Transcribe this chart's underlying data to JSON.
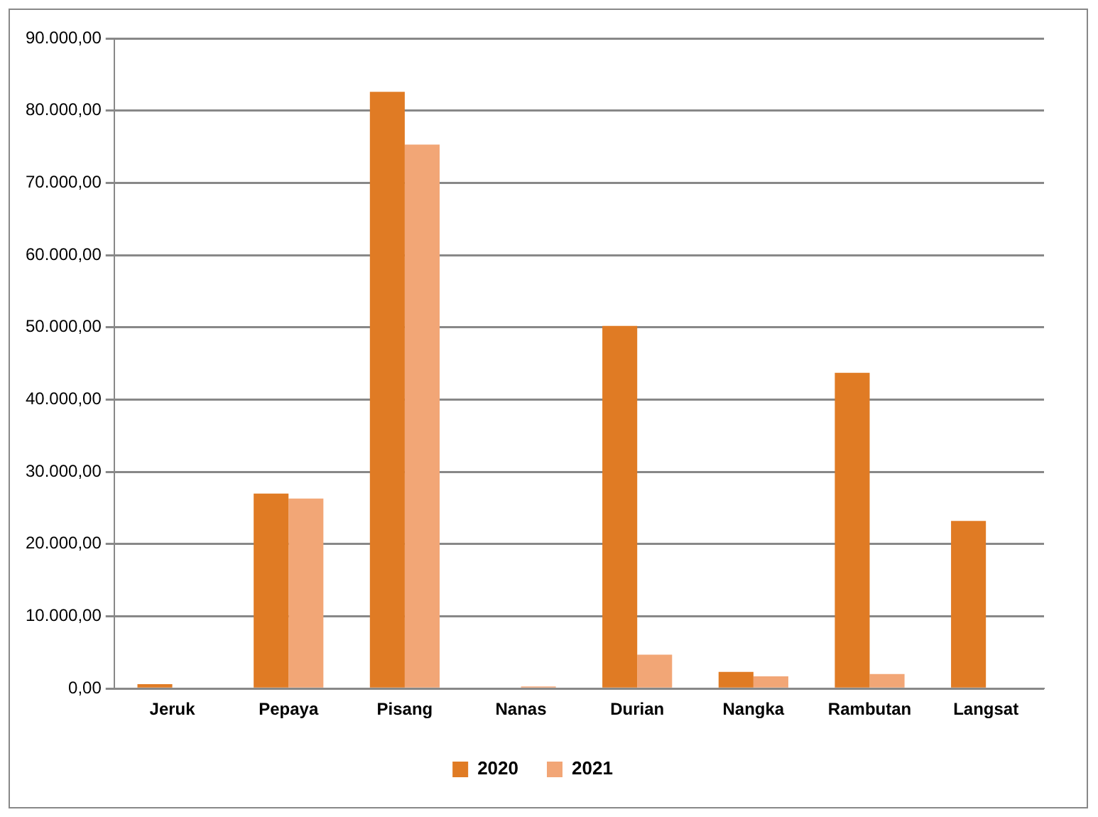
{
  "chart_data": {
    "type": "bar",
    "categories": [
      "Jeruk",
      "Pepaya",
      "Pisang",
      "Nanas",
      "Durian",
      "Nangka",
      "Rambutan",
      "Langsat"
    ],
    "series": [
      {
        "name": "2020",
        "color": "#e07b24",
        "values": [
          600,
          27000,
          82600,
          0,
          50200,
          2300,
          43700,
          23200
        ]
      },
      {
        "name": "2021",
        "color": "#f2a676",
        "values": [
          0,
          26300,
          75300,
          300,
          4700,
          1700,
          2000,
          0
        ]
      }
    ],
    "ylim": [
      0,
      90000
    ],
    "yticks": [
      {
        "value": 0,
        "label": "0,00"
      },
      {
        "value": 10000,
        "label": "10.000,00"
      },
      {
        "value": 20000,
        "label": "20.000,00"
      },
      {
        "value": 30000,
        "label": "30.000,00"
      },
      {
        "value": 40000,
        "label": "40.000,00"
      },
      {
        "value": 50000,
        "label": "50.000,00"
      },
      {
        "value": 60000,
        "label": "60.000,00"
      },
      {
        "value": 70000,
        "label": "70.000,00"
      },
      {
        "value": 80000,
        "label": "80.000,00"
      },
      {
        "value": 90000,
        "label": "90.000,00"
      }
    ],
    "grid": "y",
    "legend": "bottom"
  }
}
